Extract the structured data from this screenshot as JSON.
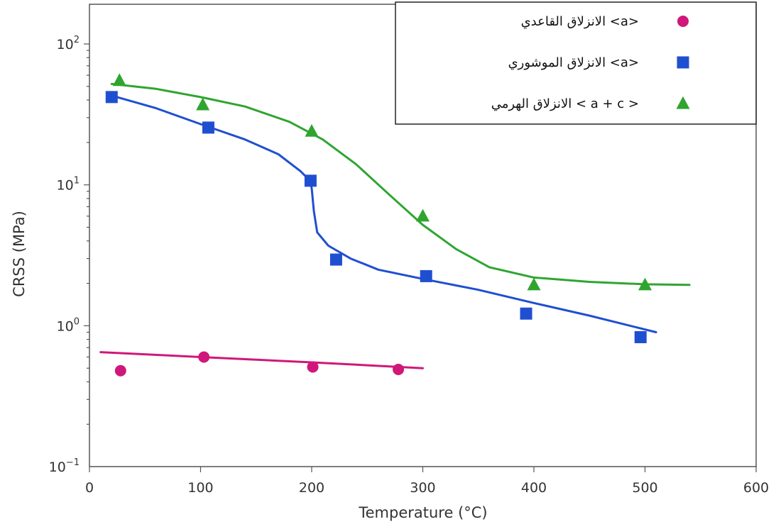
{
  "chart_data": {
    "type": "scatter",
    "xlabel": "Temperature (°C)",
    "ylabel": "CRSS (MPa)",
    "xlim": [
      0,
      600
    ],
    "ylim": [
      0.1,
      200
    ],
    "yscale": "log",
    "grid": false,
    "legend_position": "top-right",
    "x_ticks": [
      0,
      100,
      200,
      300,
      400,
      500,
      600
    ],
    "y_ticks": [
      {
        "value": 100,
        "base": "10",
        "exp": "2"
      },
      {
        "value": 10,
        "base": "10",
        "exp": "1"
      },
      {
        "value": 1,
        "base": "10",
        "exp": "0"
      },
      {
        "value": 0.1,
        "base": "10",
        "exp": "−1"
      }
    ],
    "series": [
      {
        "name": "الانزلاق القاعدي <a>",
        "marker": "circle",
        "color": "#d0177a",
        "points": [
          [
            28,
            0.48
          ],
          [
            103,
            0.6
          ],
          [
            201,
            0.51
          ],
          [
            278,
            0.49
          ]
        ],
        "fit": [
          [
            10,
            0.65
          ],
          [
            100,
            0.6
          ],
          [
            200,
            0.55
          ],
          [
            300,
            0.5
          ]
        ]
      },
      {
        "name": "الانزلاق الموشوري <a>",
        "marker": "square",
        "color": "#1f4fd1",
        "points": [
          [
            20,
            42
          ],
          [
            107,
            25.5
          ],
          [
            199,
            10.7
          ],
          [
            222,
            2.95
          ],
          [
            303,
            2.25
          ],
          [
            393,
            1.22
          ],
          [
            496,
            0.83
          ]
        ],
        "fit": [
          [
            20,
            43
          ],
          [
            60,
            35
          ],
          [
            100,
            27
          ],
          [
            140,
            21
          ],
          [
            170,
            16.5
          ],
          [
            190,
            12.5
          ],
          [
            198,
            10.8
          ],
          [
            200,
            9.5
          ],
          [
            202,
            6.5
          ],
          [
            205,
            4.6
          ],
          [
            215,
            3.7
          ],
          [
            235,
            3.0
          ],
          [
            260,
            2.5
          ],
          [
            300,
            2.15
          ],
          [
            350,
            1.8
          ],
          [
            400,
            1.45
          ],
          [
            450,
            1.18
          ],
          [
            510,
            0.9
          ]
        ]
      },
      {
        "name": "الانزلاق الهرمي < a + c >",
        "marker": "triangle",
        "color": "#2fa52f",
        "points": [
          [
            27,
            55
          ],
          [
            102,
            37
          ],
          [
            200,
            24
          ],
          [
            300,
            6
          ],
          [
            400,
            1.95
          ],
          [
            500,
            1.95
          ]
        ],
        "fit": [
          [
            20,
            52
          ],
          [
            60,
            48
          ],
          [
            100,
            42
          ],
          [
            140,
            36
          ],
          [
            180,
            28
          ],
          [
            210,
            21
          ],
          [
            240,
            14
          ],
          [
            270,
            8.5
          ],
          [
            300,
            5.2
          ],
          [
            330,
            3.5
          ],
          [
            360,
            2.6
          ],
          [
            400,
            2.2
          ],
          [
            450,
            2.05
          ],
          [
            500,
            1.97
          ],
          [
            540,
            1.95
          ]
        ]
      }
    ]
  }
}
